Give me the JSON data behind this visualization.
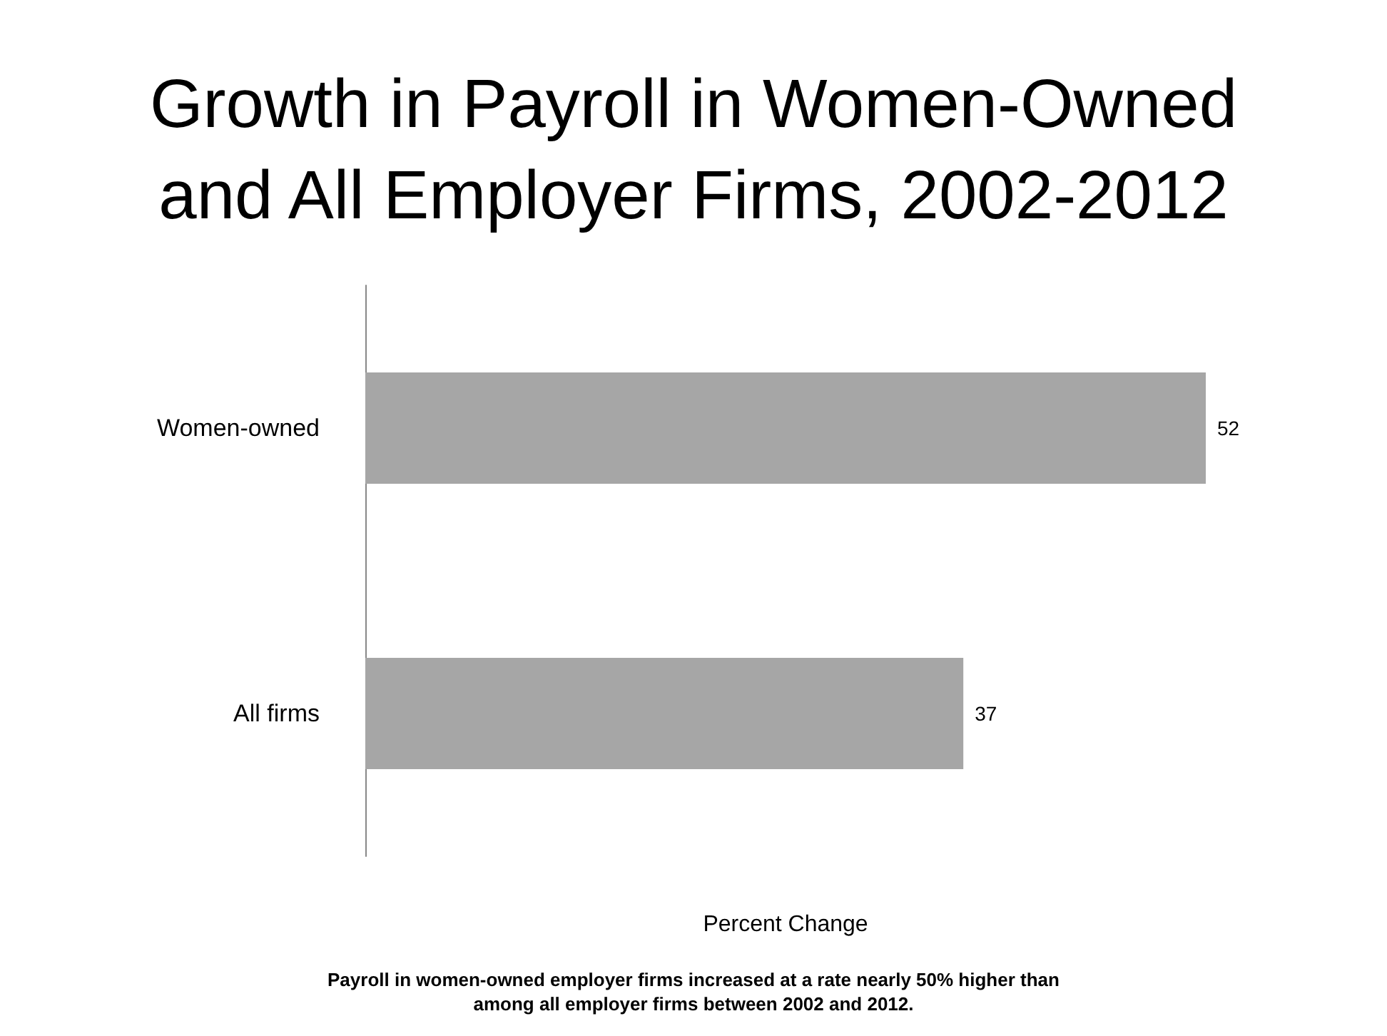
{
  "chart_data": {
    "type": "bar",
    "orientation": "horizontal",
    "title": "Growth in Payroll in Women-Owned and All Employer Firms, 2002-2012",
    "categories": [
      "Women-owned",
      "All firms"
    ],
    "values": [
      52,
      37
    ],
    "color": "#a6a6a6",
    "data_labels": true,
    "xlabel": "Percent Change",
    "tick_labels": "y",
    "grid": false,
    "annotations": [
      "Payroll in women-owned employer firms increased at a rate nearly 50% higher than among all employer firms between 2002 and 2012."
    ]
  }
}
